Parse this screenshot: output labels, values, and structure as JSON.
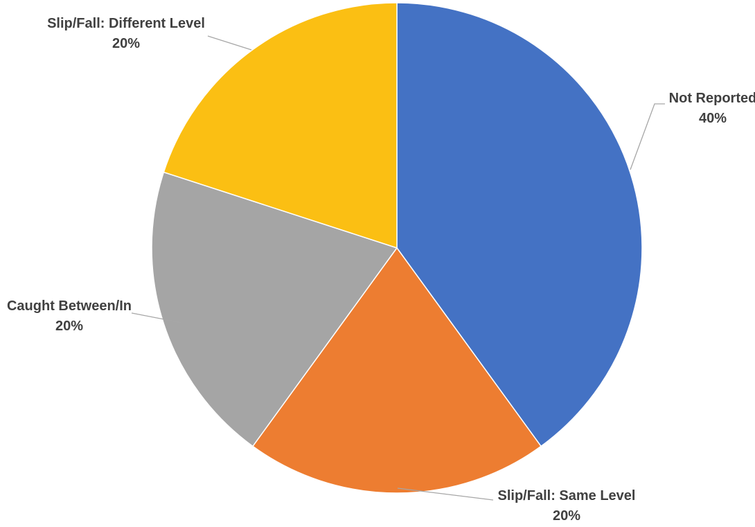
{
  "chart_data": {
    "type": "pie",
    "title": "",
    "slices": [
      {
        "name": "Not Reported",
        "value": 40,
        "label": "40%",
        "color": "#4472c4"
      },
      {
        "name": "Slip/Fall: Same Level",
        "value": 20,
        "label": "20%",
        "color": "#ed7d31"
      },
      {
        "name": "Caught Between/In",
        "value": 20,
        "label": "20%",
        "color": "#a5a5a5"
      },
      {
        "name": "Slip/Fall: Different Level",
        "value": 20,
        "label": "20%",
        "color": "#fbbf13"
      }
    ],
    "start": "12 o'clock",
    "direction": "clockwise",
    "legend": "none",
    "data_labels": "outside with leader lines"
  }
}
